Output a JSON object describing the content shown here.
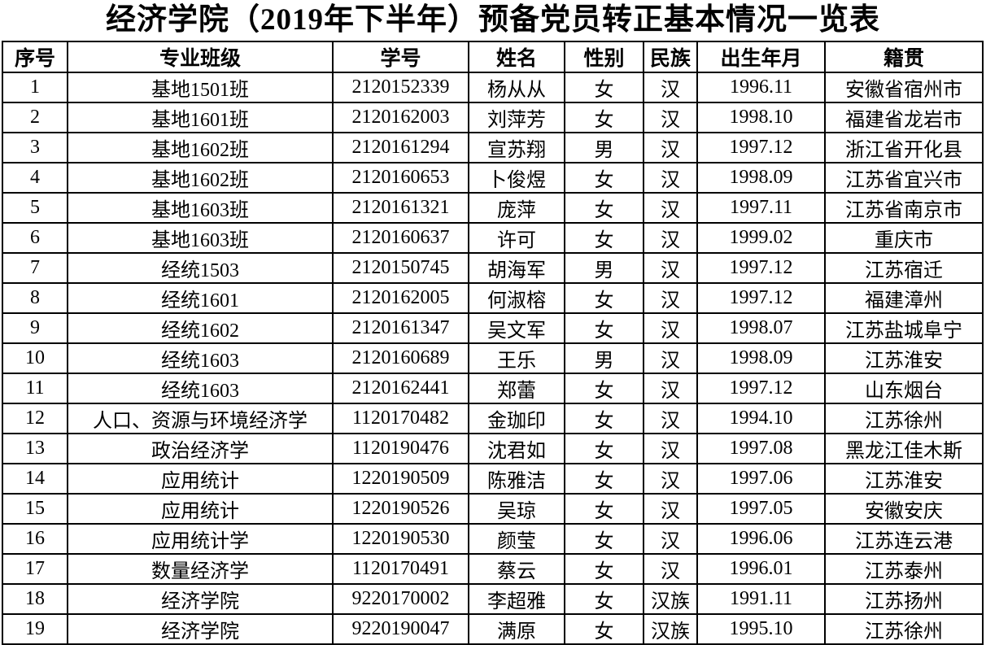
{
  "title": "经济学院（2019年下半年）预备党员转正基本情况一览表",
  "headers": [
    "序号",
    "专业班级",
    "学号",
    "姓名",
    "性别",
    "民族",
    "出生年月",
    "籍贯"
  ],
  "rows": [
    [
      "1",
      "基地1501班",
      "2120152339",
      "杨从从",
      "女",
      "汉",
      "1996.11",
      "安徽省宿州市"
    ],
    [
      "2",
      "基地1601班",
      "2120162003",
      "刘萍芳",
      "女",
      "汉",
      "1998.10",
      "福建省龙岩市"
    ],
    [
      "3",
      "基地1602班",
      "2120161294",
      "宣苏翔",
      "男",
      "汉",
      "1997.12",
      "浙江省开化县"
    ],
    [
      "4",
      "基地1602班",
      "2120160653",
      "卜俊煜",
      "女",
      "汉",
      "1998.09",
      "江苏省宜兴市"
    ],
    [
      "5",
      "基地1603班",
      "2120161321",
      "庞萍",
      "女",
      "汉",
      "1997.11",
      "江苏省南京市"
    ],
    [
      "6",
      "基地1603班",
      "2120160637",
      "许可",
      "女",
      "汉",
      "1999.02",
      "重庆市"
    ],
    [
      "7",
      "经统1503",
      "2120150745",
      "胡海军",
      "男",
      "汉",
      "1997.12",
      "江苏宿迁"
    ],
    [
      "8",
      "经统1601",
      "2120162005",
      "何淑榕",
      "女",
      "汉",
      "1997.12",
      "福建漳州"
    ],
    [
      "9",
      "经统1602",
      "2120161347",
      "吴文军",
      "女",
      "汉",
      "1998.07",
      "江苏盐城阜宁"
    ],
    [
      "10",
      "经统1603",
      "2120160689",
      "王乐",
      "男",
      "汉",
      "1998.09",
      "江苏淮安"
    ],
    [
      "11",
      "经统1603",
      "2120162441",
      "郑蕾",
      "女",
      "汉",
      "1997.12",
      "山东烟台"
    ],
    [
      "12",
      "人口、资源与环境经济学",
      "1120170482",
      "金珈印",
      "女",
      "汉",
      "1994.10",
      "江苏徐州"
    ],
    [
      "13",
      "政治经济学",
      "1120190476",
      "沈君如",
      "女",
      "汉",
      "1997.08",
      "黑龙江佳木斯"
    ],
    [
      "14",
      "应用统计",
      "1220190509",
      "陈雅洁",
      "女",
      "汉",
      "1997.06",
      "江苏淮安"
    ],
    [
      "15",
      "应用统计",
      "1220190526",
      "吴琼",
      "女",
      "汉",
      "1997.05",
      "安徽安庆"
    ],
    [
      "16",
      "应用统计学",
      "1220190530",
      "颜莹",
      "女",
      "汉",
      "1996.06",
      "江苏连云港"
    ],
    [
      "17",
      "数量经济学",
      "1120170491",
      "蔡云",
      "女",
      "汉",
      "1996.01",
      "江苏泰州"
    ],
    [
      "18",
      "经济学院",
      "9220170002",
      "李超雅",
      "女",
      "汉族",
      "1991.11",
      "江苏扬州"
    ],
    [
      "19",
      "经济学院",
      "9220190047",
      "满原",
      "女",
      "汉族",
      "1995.10",
      "江苏徐州"
    ]
  ]
}
